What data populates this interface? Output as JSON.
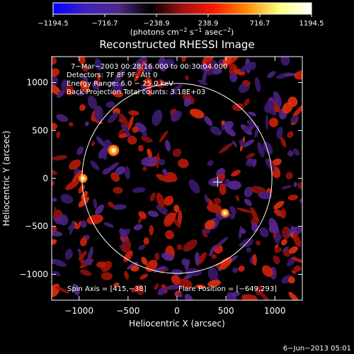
{
  "chart_data": {
    "type": "heatmap",
    "title": "Reconstructed RHESSI Image",
    "xlabel": "Heliocentric X (arcsec)",
    "ylabel": "Heliocentric Y (arcsec)",
    "xlim": [
      -1280,
      1280
    ],
    "ylim": [
      -1270,
      1270
    ],
    "x_ticks": [
      -1000,
      -500,
      0,
      500,
      1000
    ],
    "y_ticks": [
      -1000,
      -500,
      0,
      500,
      1000
    ],
    "x_tick_labels": [
      "−1000",
      "−500",
      "0",
      "500",
      "1000"
    ],
    "y_tick_labels": [
      "−1000",
      "−500",
      "0",
      "500",
      "1000"
    ],
    "colorbar": {
      "min": -1194.5,
      "max": 1194.5,
      "ticks": [
        -1194.5,
        -716.7,
        -238.9,
        238.9,
        716.7,
        1194.5
      ],
      "tick_labels": [
        "−1194.5",
        "−716.7",
        "−238.9",
        "238.9",
        "716.7",
        "1194.5"
      ],
      "unit_prefix": "(photons cm",
      "unit_exp1": "−2",
      "unit_mid": " s",
      "unit_exp2": "−1",
      "unit_mid2": " asec",
      "unit_exp3": "−2",
      "unit_suffix": ")",
      "colors": [
        "#0000ff",
        "#4020c0",
        "#50288a",
        "#000000",
        "#a01010",
        "#ff1a00",
        "#ff8c00",
        "#ffff80",
        "#ffffff"
      ]
    },
    "annotations": [
      "7−Mar−2003 00:28:16.000 to 00:30:04.000",
      "Detectors: 7F 8F 9F, Att 0",
      "Energy Range: 6.0 − 25.0 keV",
      "Back Projection    Total counts: 3.18E+03"
    ],
    "spin_axis": "Spin Axis = [415,−38]",
    "flare_position": "Flare Position = [−649,293]",
    "sun_circle": {
      "center": [
        0,
        0
      ],
      "radius": 970
    },
    "cross_marker": [
      415,
      -38
    ],
    "hot_spots": [
      {
        "x": -649,
        "y": 293,
        "intensity": 1194.5
      },
      {
        "x": -960,
        "y": 0,
        "intensity": 950
      },
      {
        "x": 490,
        "y": -360,
        "intensity": 900
      }
    ]
  },
  "footer": {
    "date": "6−Jun−2013 05:01"
  }
}
